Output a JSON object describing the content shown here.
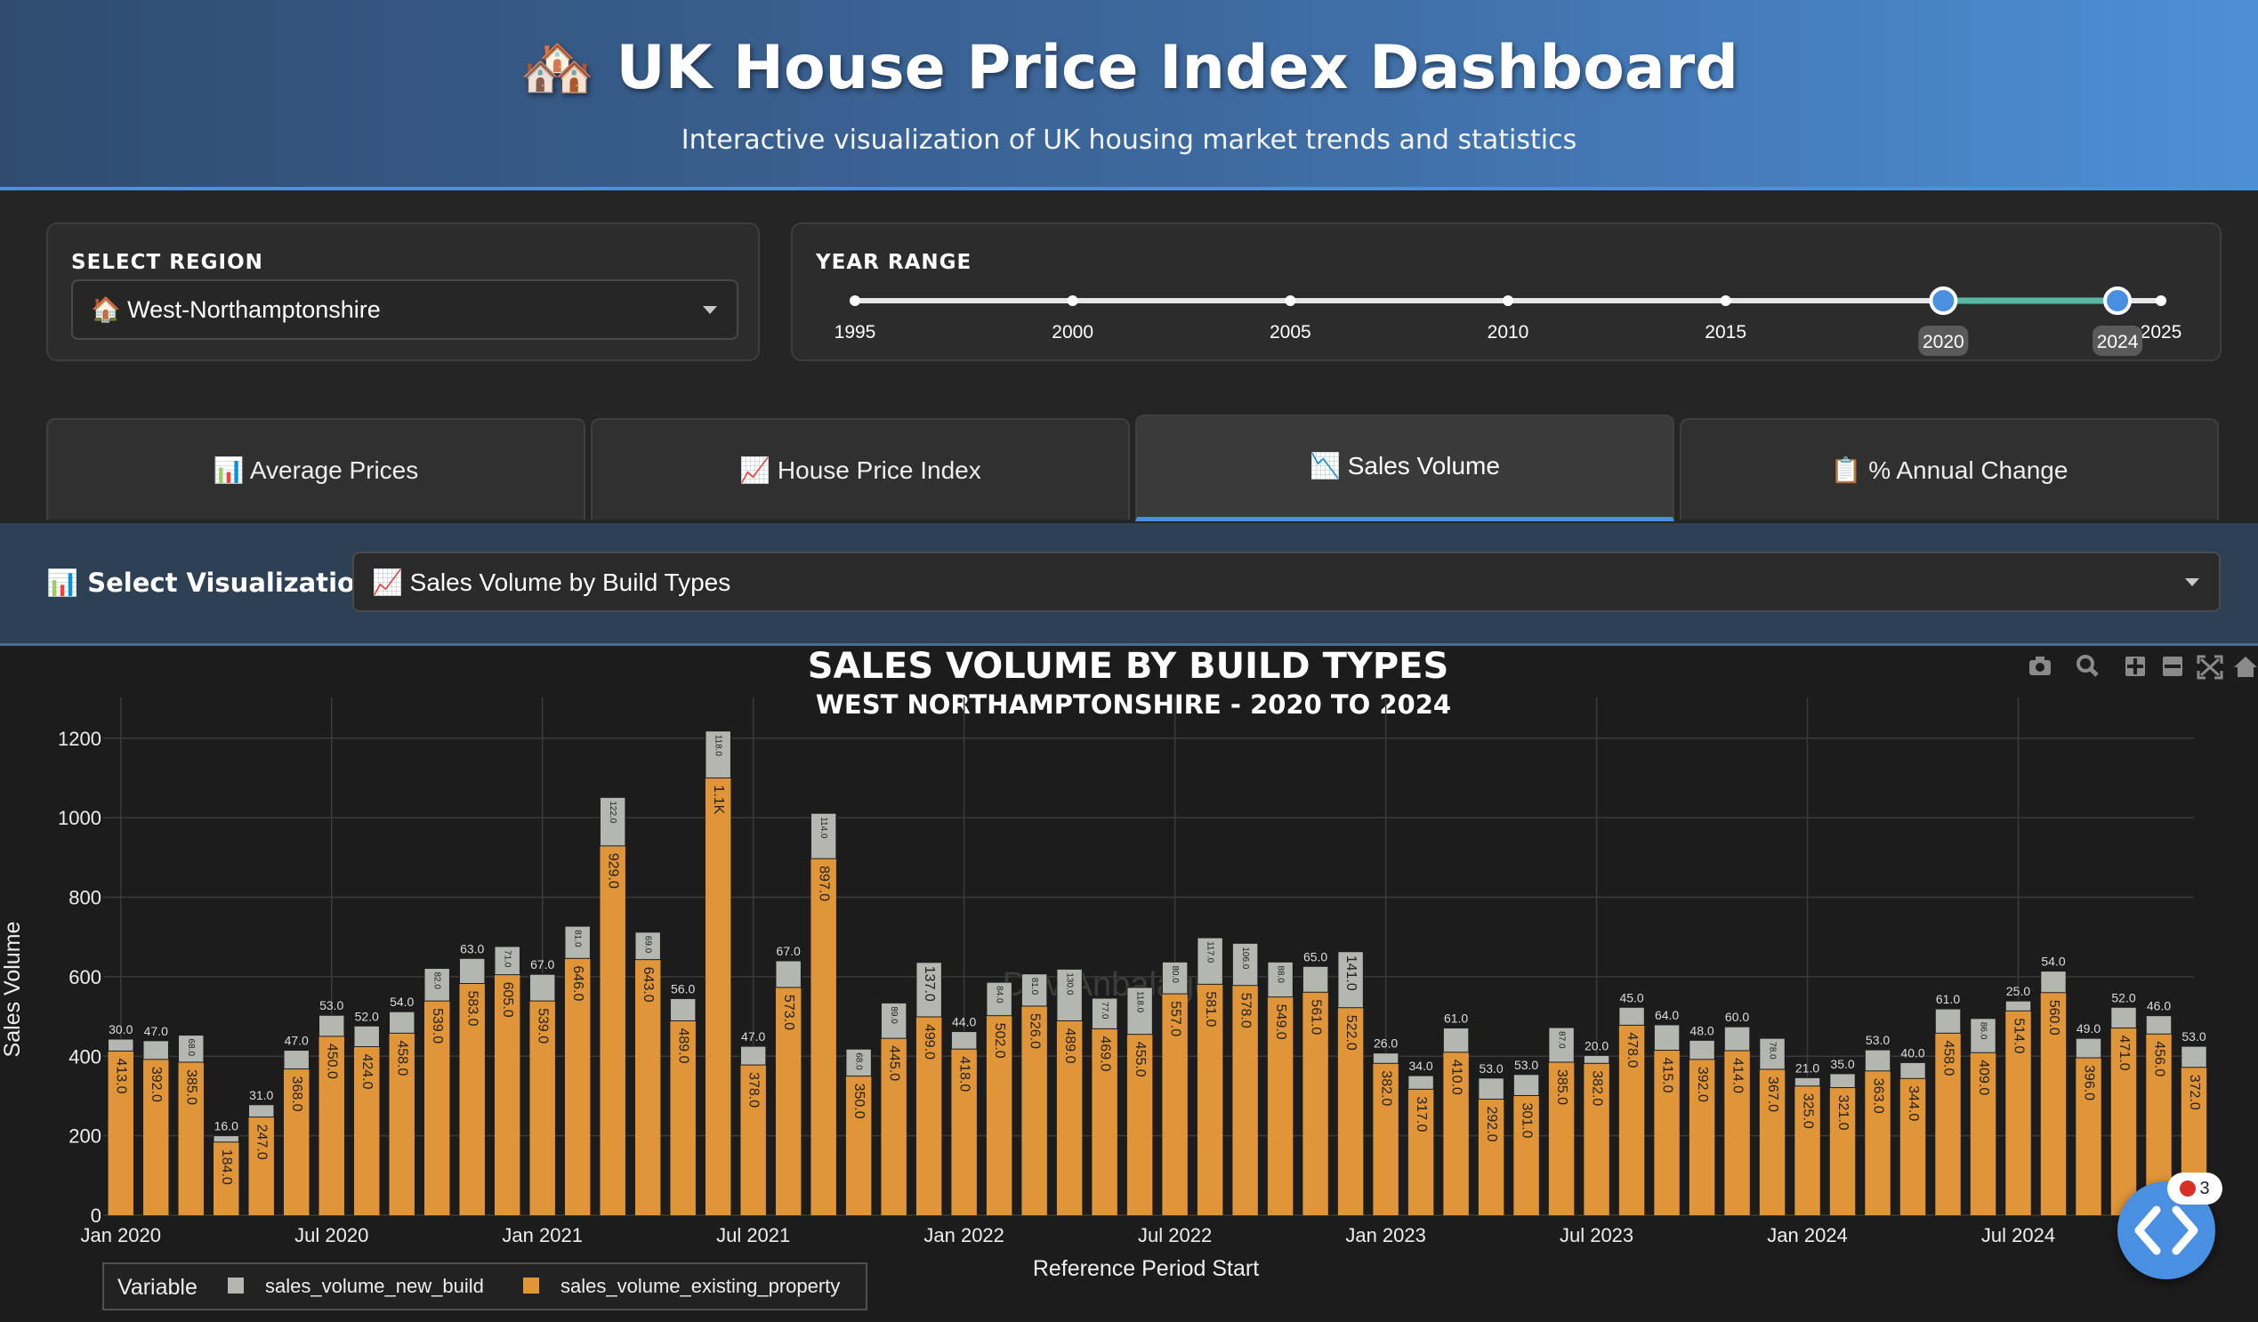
{
  "header": {
    "icon": "🏘️",
    "title": "UK House Price Index Dashboard",
    "subtitle": "Interactive visualization of UK housing market trends and statistics"
  },
  "region": {
    "label": "SELECT REGION",
    "icon": "🏠",
    "value": "West-Northamptonshire"
  },
  "year_range": {
    "label": "YEAR RANGE",
    "min": 1995,
    "max": 2025,
    "marks": [
      "1995",
      "2000",
      "2005",
      "2010",
      "2015",
      "2020",
      "2025"
    ],
    "selected": [
      2020,
      2024
    ],
    "selected_labels": [
      "2020",
      "2024"
    ]
  },
  "tabs": [
    {
      "icon": "📊",
      "label": "Average Prices",
      "active": false
    },
    {
      "icon": "📈",
      "label": "House Price Index",
      "active": false
    },
    {
      "icon": "📉",
      "label": "Sales Volume",
      "active": true
    },
    {
      "icon": "📋",
      "label": "% Annual Change",
      "active": false
    }
  ],
  "viz": {
    "label_icon": "📊",
    "label": "Select Visualization:",
    "value_icon": "📈",
    "value": "Sales Volume by Build Types"
  },
  "watermark": "Dev Anbalagu",
  "fab": {
    "badge": "3"
  },
  "colors": {
    "existing": "#e09538",
    "new_build": "#b4b7b0",
    "accent": "#4a90e2"
  },
  "chart_data": {
    "type": "bar",
    "stacked": true,
    "title": "SALES VOLUME BY BUILD TYPES",
    "subtitle": "WEST NORTHAMPTONSHIRE - 2020 TO 2024",
    "xlabel": "Reference Period Start",
    "ylabel": "Sales Volume",
    "ylim": [
      0,
      1280
    ],
    "yticks": [
      0,
      200,
      400,
      600,
      800,
      1000,
      1200
    ],
    "xticks": [
      {
        "index": 0,
        "label": "Jan 2020"
      },
      {
        "index": 6,
        "label": "Jul 2020"
      },
      {
        "index": 12,
        "label": "Jan 2021"
      },
      {
        "index": 18,
        "label": "Jul 2021"
      },
      {
        "index": 24,
        "label": "Jan 2022"
      },
      {
        "index": 30,
        "label": "Jul 2022"
      },
      {
        "index": 36,
        "label": "Jan 2023"
      },
      {
        "index": 42,
        "label": "Jul 2023"
      },
      {
        "index": 48,
        "label": "Jan 2024"
      },
      {
        "index": 54,
        "label": "Jul 2024"
      }
    ],
    "legend_title": "Variable",
    "legend_position": "bottom-left",
    "series": [
      {
        "name": "sales_volume_new_build",
        "values": [
          30,
          47,
          68,
          16,
          31,
          47,
          53,
          52,
          54,
          82,
          63,
          71,
          67,
          81,
          122,
          69,
          56,
          118,
          47,
          67,
          114,
          68,
          89,
          137,
          44,
          84,
          81,
          130,
          77,
          118,
          80,
          117,
          106,
          88,
          65,
          141,
          26,
          34,
          61,
          53,
          53,
          87,
          20,
          45,
          64,
          48,
          60,
          78,
          21,
          35,
          53,
          40,
          61,
          86,
          25,
          54,
          49,
          52,
          46,
          53
        ]
      },
      {
        "name": "sales_volume_existing_property",
        "values": [
          413,
          392,
          385,
          184,
          247,
          368,
          450,
          424,
          458,
          539,
          583,
          605,
          539,
          646,
          929,
          643,
          489,
          1100,
          378,
          573,
          897,
          350,
          445,
          499,
          418,
          502,
          526,
          489,
          469,
          455,
          557,
          581,
          578,
          549,
          561,
          522,
          382,
          317,
          410,
          292,
          301,
          385,
          382,
          478,
          415,
          392,
          414,
          367,
          325,
          321,
          363,
          344,
          458,
          409,
          514,
          560,
          396,
          471,
          456,
          372
        ]
      }
    ],
    "existing_labels": [
      "413.0",
      "392.0",
      "385.0",
      "184.0",
      "247.0",
      "368.0",
      "450.0",
      "424.0",
      "458.0",
      "539.0",
      "583.0",
      "605.0",
      "539.0",
      "646.0",
      "929.0",
      "643.0",
      "489.0",
      "1.1K",
      "378.0",
      "573.0",
      "897.0",
      "350.0",
      "445.0",
      "499.0",
      "418.0",
      "502.0",
      "526.0",
      "489.0",
      "469.0",
      "455.0",
      "557.0",
      "581.0",
      "578.0",
      "549.0",
      "561.0",
      "522.0",
      "382.0",
      "317.0",
      "410.0",
      "292.0",
      "301.0",
      "385.0",
      "382.0",
      "478.0",
      "415.0",
      "392.0",
      "414.0",
      "367.0",
      "325.0",
      "321.0",
      "363.0",
      "344.0",
      "458.0",
      "409.0",
      "514.0",
      "560.0",
      "396.0",
      "471.0",
      "456.0",
      "372.0"
    ],
    "new_build_labels": [
      "30.0",
      "47.0",
      "68.0",
      "16.0",
      "31.0",
      "47.0",
      "53.0",
      "52.0",
      "54.0",
      "82.0",
      "63.0",
      "71.0",
      "67.0",
      "81.0",
      "122.0",
      "69.0",
      "56.0",
      "118.0",
      "47.0",
      "67.0",
      "114.0",
      "68.0",
      "89.0",
      "137.0",
      "44.0",
      "84.0",
      "81.0",
      "130.0",
      "77.0",
      "118.0",
      "80.0",
      "117.0",
      "106.0",
      "88.0",
      "65.0",
      "141.0",
      "26.0",
      "34.0",
      "61.0",
      "53.0",
      "53.0",
      "87.0",
      "20.0",
      "45.0",
      "64.0",
      "48.0",
      "60.0",
      "78.0",
      "21.0",
      "35.0",
      "53.0",
      "40.0",
      "61.0",
      "86.0",
      "25.0",
      "54.0",
      "49.0",
      "52.0",
      "46.0",
      "53.0"
    ]
  }
}
